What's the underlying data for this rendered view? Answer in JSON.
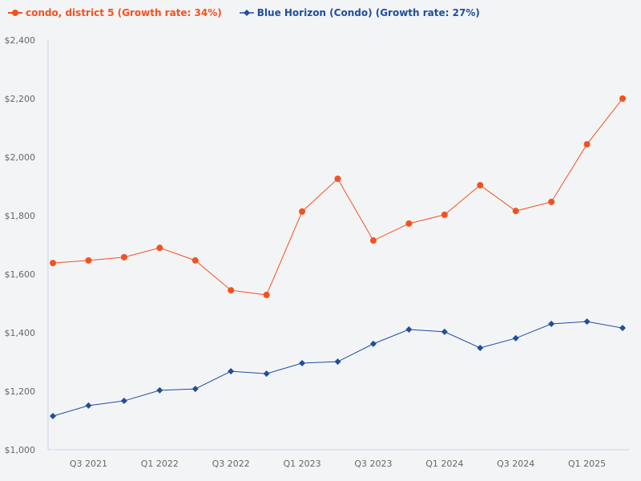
{
  "chart_data": {
    "type": "line",
    "title": "",
    "xlabel": "",
    "ylabel": "",
    "ylim": [
      1000,
      2400
    ],
    "yticks": [
      "$1,000",
      "$1,200",
      "$1,400",
      "$1,600",
      "$1,800",
      "$2,000",
      "$2,200",
      "$2,400"
    ],
    "ytick_values": [
      1000,
      1200,
      1400,
      1600,
      1800,
      2000,
      2200,
      2400
    ],
    "x": [
      "Q2 2021",
      "Q3 2021",
      "Q4 2021",
      "Q1 2022",
      "Q2 2022",
      "Q3 2022",
      "Q4 2022",
      "Q1 2023",
      "Q2 2023",
      "Q3 2023",
      "Q4 2023",
      "Q1 2024",
      "Q2 2024",
      "Q3 2024",
      "Q4 2024",
      "Q1 2025",
      "Q2 2025"
    ],
    "xtick_labels": [
      "Q3 2021",
      "Q1 2022",
      "Q3 2022",
      "Q1 2023",
      "Q3 2023",
      "Q1 2024",
      "Q3 2024",
      "Q1 2025"
    ],
    "grid": false,
    "legend_placement": "top-left",
    "series": [
      {
        "name": "condo, district 5 (Growth rate: 34%)",
        "color": "#f4511e",
        "marker": "circle",
        "values": [
          1638,
          1647,
          1658,
          1690,
          1647,
          1545,
          1529,
          1814,
          1926,
          1715,
          1773,
          1803,
          1904,
          1816,
          1847,
          2044,
          2200
        ]
      },
      {
        "name": "Blue Horizon (Condo) (Growth rate: 27%)",
        "color": "#1f4e9c",
        "marker": "diamond",
        "values": [
          1115,
          1151,
          1167,
          1203,
          1208,
          1268,
          1260,
          1296,
          1301,
          1362,
          1411,
          1403,
          1348,
          1381,
          1430,
          1438,
          1416
        ]
      }
    ]
  }
}
